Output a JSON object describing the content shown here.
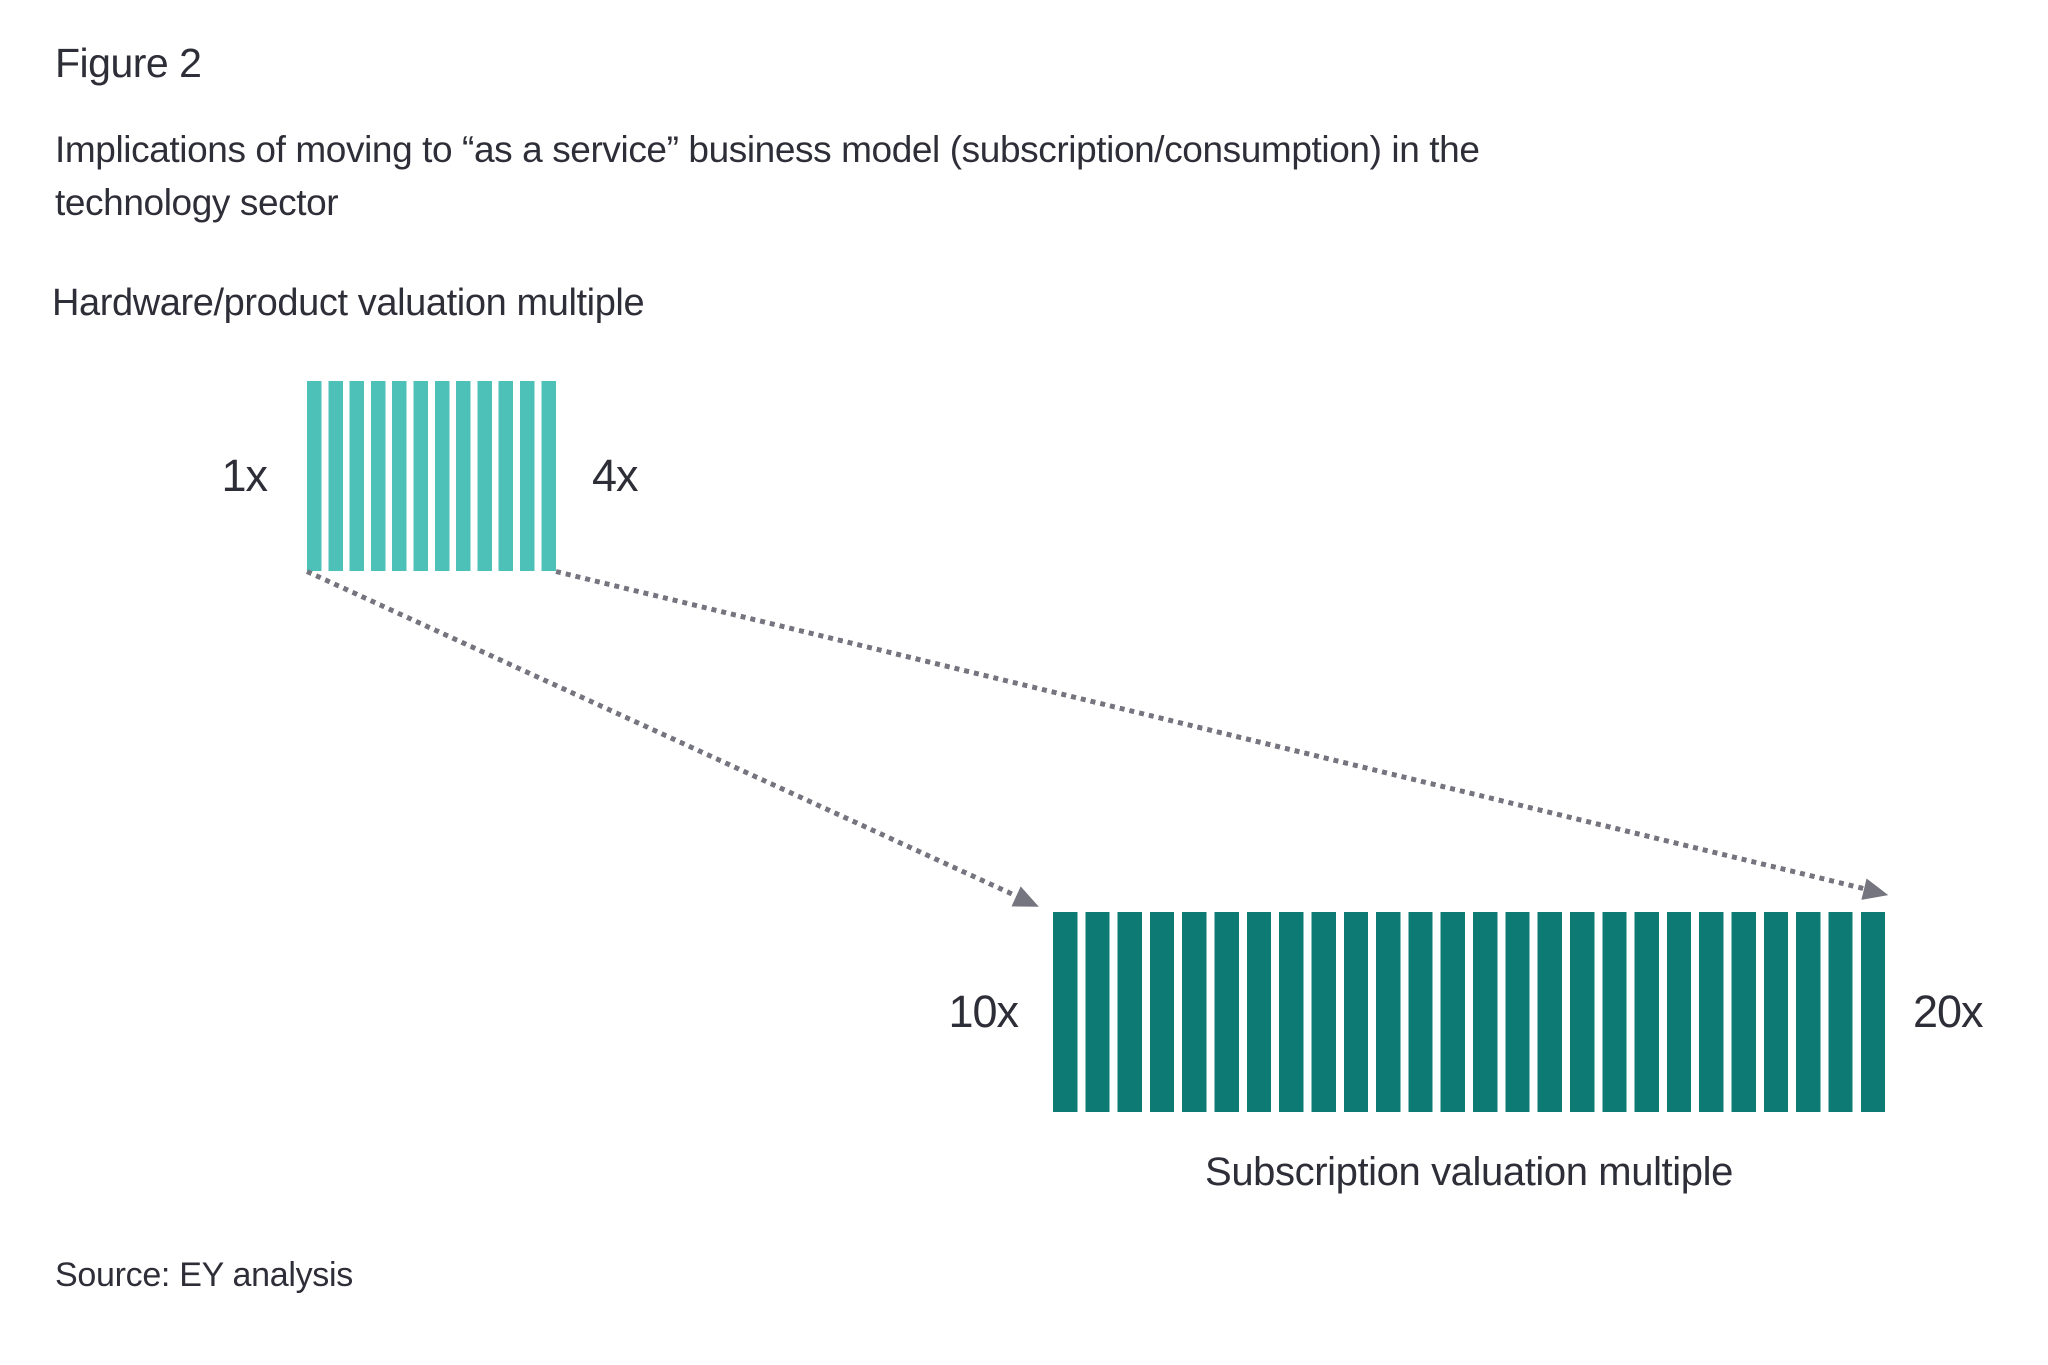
{
  "figure": {
    "label": "Figure 2",
    "title": "Implications of moving to “as a service” business model (subscription/consumption) in the technology sector",
    "source": "Source: EY analysis"
  },
  "chart_data": {
    "type": "bar",
    "subtype": "horizontal-range-comparison",
    "title": "Implications of moving to “as a service” business model (subscription/consumption) in the technology sector",
    "series": [
      {
        "name": "Hardware/product valuation multiple",
        "range_min": 1,
        "range_max": 4,
        "min_label": "1x",
        "max_label": "4x",
        "stripe_count": 12,
        "color": "#4DC0B8"
      },
      {
        "name": "Subscription valuation multiple",
        "range_min": 10,
        "range_max": 20,
        "min_label": "10x",
        "max_label": "20x",
        "stripe_count": 26,
        "color": "#0E7A74"
      }
    ],
    "arrows": {
      "style": "dotted",
      "color": "#75757F",
      "meaning": "shift from hardware/product multiple range to subscription multiple range"
    },
    "text_color": "#2E2E38",
    "legend": "none",
    "grid": "off"
  }
}
